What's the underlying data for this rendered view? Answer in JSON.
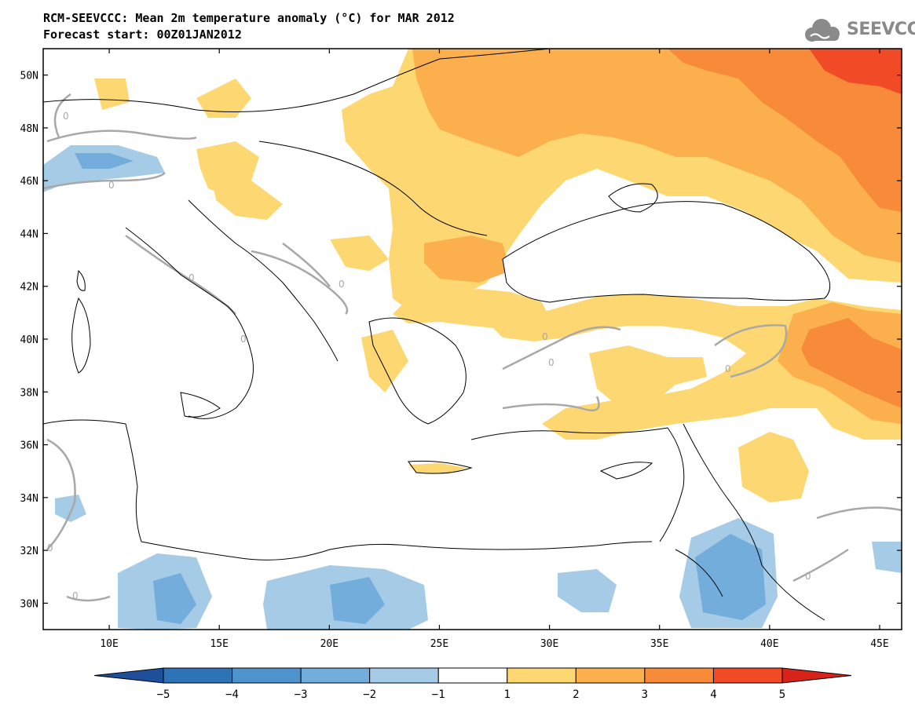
{
  "header": {
    "title": "RCM-SEEVCCC: Mean 2m temperature anomaly (°C) for MAR 2012",
    "subtitle": "Forecast start: 00Z01JAN2012"
  },
  "logo": {
    "text": "SEEVCCC",
    "icon": "cloud-icon",
    "color": "#8a8a8a"
  },
  "map": {
    "projection": "lat-lon",
    "lon_range": [
      7,
      46
    ],
    "lat_range": [
      29,
      51
    ],
    "lon_ticks": [
      10,
      15,
      20,
      25,
      30,
      35,
      40,
      45
    ],
    "lat_ticks": [
      30,
      32,
      34,
      36,
      38,
      40,
      42,
      44,
      46,
      48,
      50
    ],
    "lon_labels": [
      "10E",
      "15E",
      "20E",
      "25E",
      "30E",
      "35E",
      "40E",
      "45E"
    ],
    "lat_labels": [
      "30N",
      "32N",
      "34N",
      "36N",
      "38N",
      "40N",
      "42N",
      "44N",
      "46N",
      "48N",
      "50N"
    ],
    "contour_label": "0",
    "contour_color": "#a8a8a8",
    "coastline_color": "#000000"
  },
  "colorbar": {
    "levels": [
      "−5",
      "−4",
      "−3",
      "−2",
      "−1",
      "1",
      "2",
      "3",
      "4",
      "5"
    ],
    "colors": [
      "#1f4e9b",
      "#2e73b5",
      "#4f93cd",
      "#72addc",
      "#a5cbe6",
      "#ffffff",
      "#fdd872",
      "#fbb04d",
      "#f88b3a",
      "#f04a26",
      "#d8231a"
    ]
  }
}
